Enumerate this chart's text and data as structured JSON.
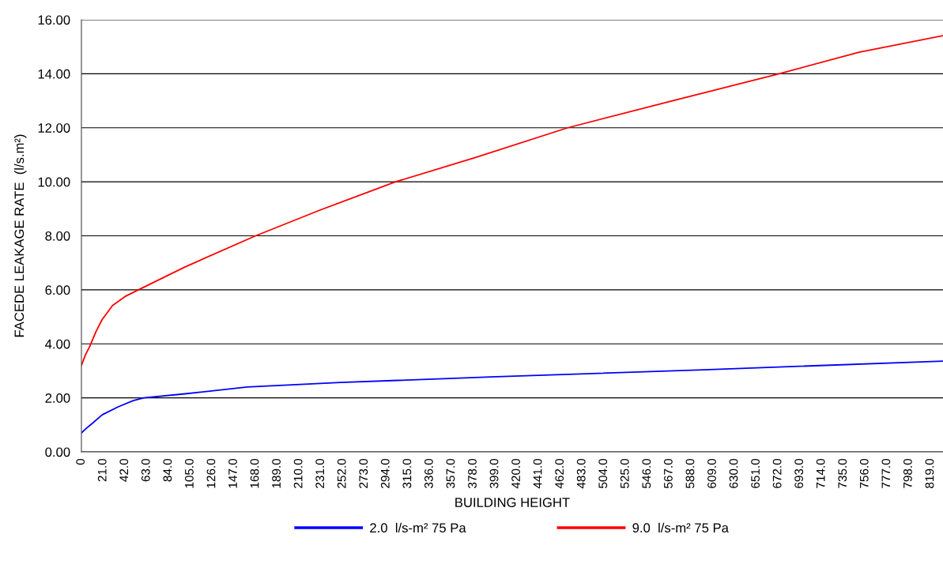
{
  "chart_data": {
    "type": "line",
    "xlabel": "BUILDING HEIGHT",
    "ylabel": "FACEDE LEAKAGE RATE  (l/s.m²)",
    "series": [
      {
        "name": "2.0  l/s-m² 75 Pa",
        "color": "#0000ff",
        "x": [
          0,
          5,
          10,
          20,
          35,
          50,
          60,
          100,
          160,
          250,
          400,
          600,
          831
        ],
        "values": [
          0.7,
          0.88,
          1.04,
          1.37,
          1.66,
          1.9,
          2.0,
          2.15,
          2.4,
          2.57,
          2.78,
          3.04,
          3.36
        ]
      },
      {
        "name": "9.0  l/s-m² 75 Pa",
        "color": "#ff0000",
        "x": [
          0,
          4,
          8,
          14,
          20,
          30,
          42,
          55,
          100,
          168,
          230,
          303,
          380,
          469,
          570,
          673,
          750,
          831
        ],
        "values": [
          3.2,
          3.6,
          3.9,
          4.45,
          4.9,
          5.42,
          5.75,
          6.0,
          6.85,
          8.0,
          8.95,
          10.0,
          10.9,
          12.0,
          13.0,
          14.0,
          14.8,
          15.41
        ]
      }
    ],
    "xlim": [
      0,
      831
    ],
    "ylim": [
      0,
      16
    ],
    "xticks": [
      0,
      {
        "value": 21,
        "label": "21.0"
      },
      {
        "value": 42,
        "label": "42.0"
      },
      {
        "value": 63,
        "label": "63.0"
      },
      {
        "value": 84,
        "label": "84.0"
      },
      {
        "value": 105,
        "label": "105.0"
      },
      {
        "value": 126,
        "label": "126.0"
      },
      {
        "value": 147,
        "label": "147.0"
      },
      {
        "value": 168,
        "label": "168.0"
      },
      {
        "value": 189,
        "label": "189.0"
      },
      {
        "value": 210,
        "label": "210.0"
      },
      {
        "value": 231,
        "label": "231.0"
      },
      {
        "value": 252,
        "label": "252.0"
      },
      {
        "value": 273,
        "label": "273.0"
      },
      {
        "value": 294,
        "label": "294.0"
      },
      {
        "value": 315,
        "label": "315.0"
      },
      {
        "value": 336,
        "label": "336.0"
      },
      {
        "value": 357,
        "label": "357.0"
      },
      {
        "value": 378,
        "label": "378.0"
      },
      {
        "value": 399,
        "label": "399.0"
      },
      {
        "value": 420,
        "label": "420.0"
      },
      {
        "value": 441,
        "label": "441.0"
      },
      {
        "value": 462,
        "label": "462.0"
      },
      {
        "value": 483,
        "label": "483.0"
      },
      {
        "value": 504,
        "label": "504.0"
      },
      {
        "value": 525,
        "label": "525.0"
      },
      {
        "value": 546,
        "label": "546.0"
      },
      {
        "value": 567,
        "label": "567.0"
      },
      {
        "value": 588,
        "label": "588.0"
      },
      {
        "value": 609,
        "label": "609.0"
      },
      {
        "value": 630,
        "label": "630.0"
      },
      {
        "value": 651,
        "label": "651.0"
      },
      {
        "value": 672,
        "label": "672.0"
      },
      {
        "value": 693,
        "label": "693.0"
      },
      {
        "value": 714,
        "label": "714.0"
      },
      {
        "value": 735,
        "label": "735.0"
      },
      {
        "value": 756,
        "label": "756.0"
      },
      {
        "value": 777,
        "label": "777.0"
      },
      {
        "value": 798,
        "label": "798.0"
      },
      {
        "value": 819,
        "label": "819.0"
      }
    ],
    "yticks": [
      {
        "value": 0,
        "label": "0.00"
      },
      {
        "value": 2,
        "label": "2.00"
      },
      {
        "value": 4,
        "label": "4.00"
      },
      {
        "value": 6,
        "label": "6.00"
      },
      {
        "value": 8,
        "label": "8.00"
      },
      {
        "value": 10,
        "label": "10.00"
      },
      {
        "value": 12,
        "label": "12.00"
      },
      {
        "value": 14,
        "label": "14.00"
      },
      {
        "value": 16,
        "label": "16.00"
      }
    ],
    "grid": "y",
    "legend": "bottom",
    "marker": "none",
    "line_style": "solid"
  }
}
